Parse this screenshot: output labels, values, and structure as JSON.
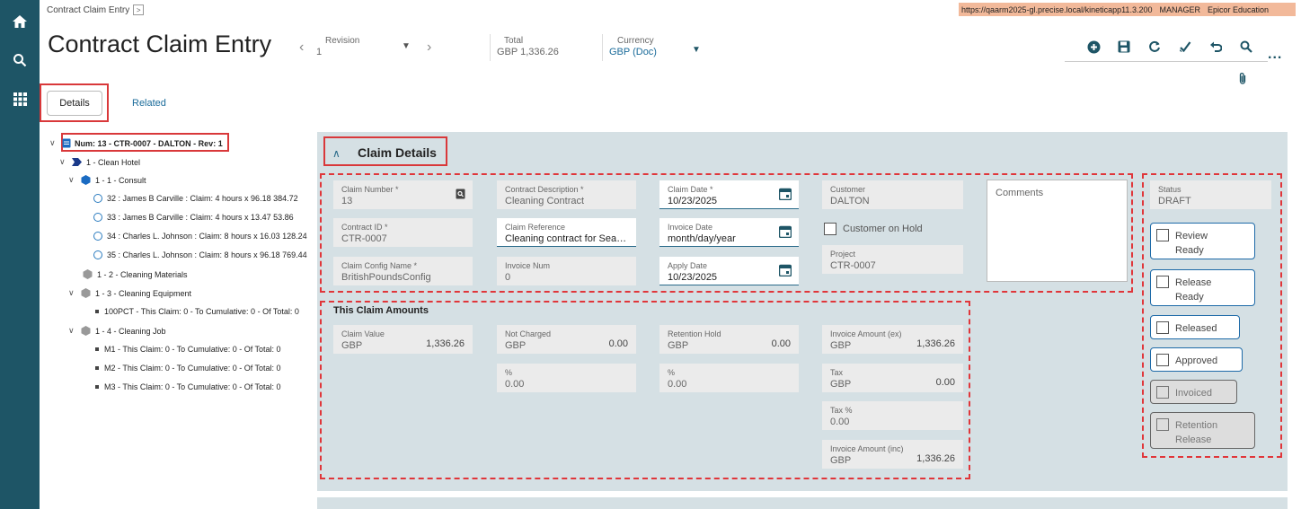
{
  "breadcrumb": {
    "label": "Contract Claim Entry",
    "expand_glyph": ">"
  },
  "env": {
    "url": "https://qaarm2025-gl.precise.local/kineticapp11.3.200",
    "user": "MANAGER",
    "company": "Epicor Education"
  },
  "header": {
    "title": "Contract Claim Entry",
    "revision": {
      "label": "Revision",
      "value": "1"
    },
    "total": {
      "label": "Total",
      "currency": "GBP",
      "value": "1,336.26"
    },
    "currency": {
      "label": "Currency",
      "value": "GBP (Doc)"
    },
    "more_glyph": "..."
  },
  "tabs": {
    "details": "Details",
    "related": "Related"
  },
  "tree": {
    "root": "Num: 13 - CTR-0007 - DALTON - Rev: 1",
    "n1": "1 - Clean Hotel",
    "n11": "1 - 1 - Consult",
    "l32": "32 : James B Carville : Claim: 4 hours x 96.18 384.72",
    "l33": "33 : James B Carville : Claim: 4 hours x 13.47 53.86",
    "l34": "34 : Charles L. Johnson : Claim: 8 hours x 16.03 128.24",
    "l35": "35 : Charles L. Johnson : Claim: 8 hours x 96.18 769.44",
    "n12": "1 - 2 - Cleaning Materials",
    "n13": "1 - 3 - Cleaning Equipment",
    "l100": "100PCT - This Claim: 0 - To Cumulative: 0 - Of Total: 0",
    "n14": "1 - 4 - Cleaning Job",
    "m1": "M1 - This Claim: 0 - To Cumulative: 0 - Of Total: 0",
    "m2": "M2 - This Claim: 0 - To Cumulative: 0 - Of Total: 0",
    "m3": "M3 - This Claim: 0 - To Cumulative: 0 - Of Total: 0"
  },
  "claim": {
    "section_title": "Claim Details",
    "claim_number": {
      "label": "Claim Number *",
      "value": "13"
    },
    "contract_desc": {
      "label": "Contract Description *",
      "value": "Cleaning Contract"
    },
    "claim_date": {
      "label": "Claim Date *",
      "value": "10/23/2025"
    },
    "customer": {
      "label": "Customer",
      "value": "DALTON"
    },
    "contract_id": {
      "label": "Contract ID *",
      "value": "CTR-0007"
    },
    "claim_ref": {
      "label": "Claim Reference",
      "value": "Cleaning contract for Seasi..."
    },
    "invoice_date": {
      "label": "Invoice Date",
      "value": "month/day/year"
    },
    "customer_hold": "Customer on Hold",
    "config_name": {
      "label": "Claim Config Name *",
      "value": "BritishPoundsConfig"
    },
    "invoice_num": {
      "label": "Invoice Num",
      "value": "0"
    },
    "apply_date": {
      "label": "Apply Date",
      "value": "10/23/2025"
    },
    "project": {
      "label": "Project",
      "value": "CTR-0007"
    },
    "comments_placeholder": "Comments"
  },
  "amounts": {
    "heading": "This Claim Amounts",
    "claim_value": {
      "label": "Claim Value",
      "cur": "GBP",
      "value": "1,336.26"
    },
    "not_charged": {
      "label": "Not Charged",
      "cur": "GBP",
      "value": "0.00"
    },
    "not_charged_pct": {
      "label": "%",
      "value": "0.00"
    },
    "retention_hold": {
      "label": "Retention Hold",
      "cur": "GBP",
      "value": "0.00"
    },
    "retention_pct": {
      "label": "%",
      "value": "0.00"
    },
    "inv_ex": {
      "label": "Invoice Amount (ex)",
      "cur": "GBP",
      "value": "1,336.26"
    },
    "tax": {
      "label": "Tax",
      "cur": "GBP",
      "value": "0.00"
    },
    "tax_pct": {
      "label": "Tax %",
      "value": "0.00"
    },
    "inv_inc": {
      "label": "Invoice Amount (inc)",
      "cur": "GBP",
      "value": "1,336.26"
    }
  },
  "status": {
    "label": "Status",
    "value": "DRAFT",
    "review_ready_1": "Review",
    "review_ready_2": "Ready",
    "release_ready_1": "Release",
    "release_ready_2": "Ready",
    "released": "Released",
    "approved": "Approved",
    "invoiced": "Invoiced",
    "retention_1": "Retention",
    "retention_2": "Release"
  },
  "colors": {
    "rail": "#1e5566",
    "accent": "#1e6aa8",
    "highlight": "#d9383a",
    "panel": "#d5e0e4"
  }
}
